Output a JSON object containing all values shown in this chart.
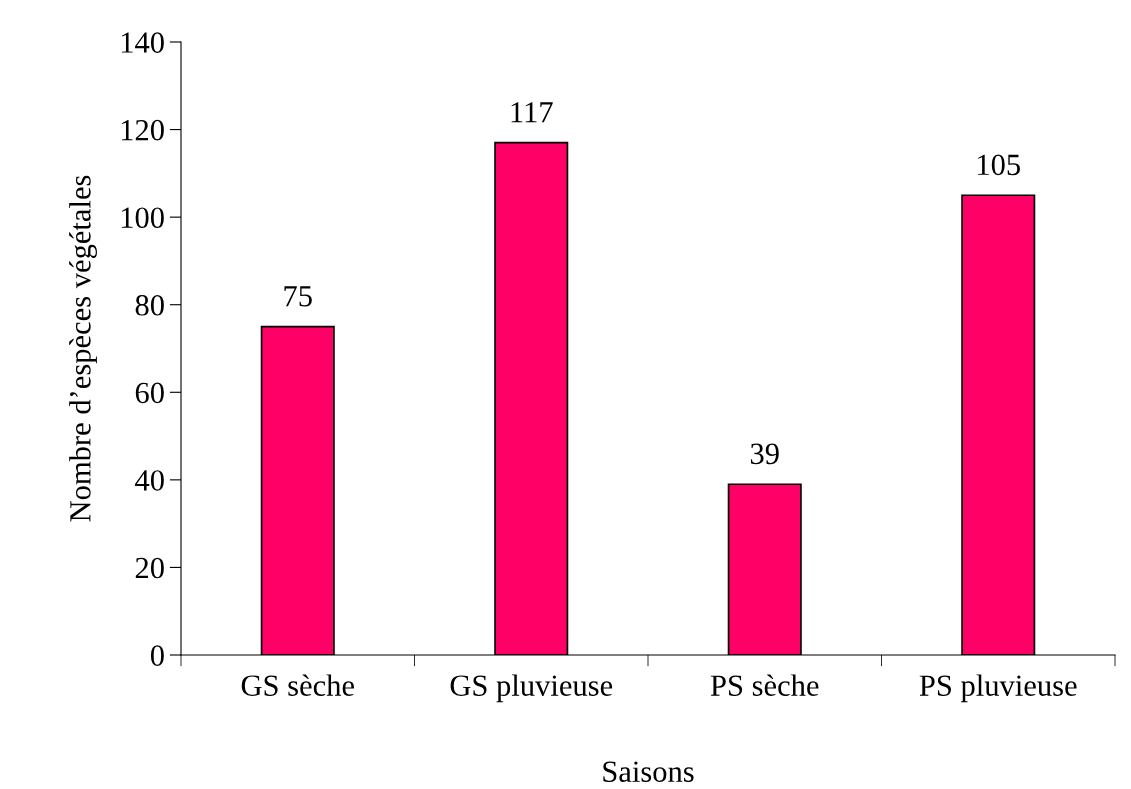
{
  "chart_data": {
    "type": "bar",
    "xlabel": "Saisons",
    "ylabel": "Nombre d’espèces végétales",
    "categories": [
      "GS sèche",
      "GS pluvieuse",
      "PS sèche",
      "PS pluvieuse"
    ],
    "values": [
      75,
      117,
      39,
      105
    ],
    "color": "#ff0066",
    "ylim": [
      0,
      140
    ],
    "yticks": [
      0,
      20,
      40,
      60,
      80,
      100,
      120,
      140
    ],
    "data_labels": true,
    "grid": false,
    "legend": false
  }
}
